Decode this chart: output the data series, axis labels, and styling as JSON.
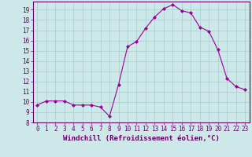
{
  "x": [
    0,
    1,
    2,
    3,
    4,
    5,
    6,
    7,
    8,
    9,
    10,
    11,
    12,
    13,
    14,
    15,
    16,
    17,
    18,
    19,
    20,
    21,
    22,
    23
  ],
  "y": [
    9.7,
    10.1,
    10.1,
    10.1,
    9.7,
    9.7,
    9.7,
    9.5,
    8.6,
    11.7,
    15.4,
    15.9,
    17.2,
    18.3,
    19.1,
    19.5,
    18.9,
    18.7,
    17.3,
    16.9,
    15.1,
    12.3,
    11.5,
    11.2
  ],
  "line_color": "#990099",
  "marker": "D",
  "marker_size": 2,
  "bg_color": "#cde8e8",
  "grid_color": "#aacccc",
  "xlabel": "Windchill (Refroidissement éolien,°C)",
  "ylim": [
    8,
    19.8
  ],
  "xlim": [
    -0.5,
    23.5
  ],
  "yticks": [
    8,
    9,
    10,
    11,
    12,
    13,
    14,
    15,
    16,
    17,
    18,
    19
  ],
  "xticks": [
    0,
    1,
    2,
    3,
    4,
    5,
    6,
    7,
    8,
    9,
    10,
    11,
    12,
    13,
    14,
    15,
    16,
    17,
    18,
    19,
    20,
    21,
    22,
    23
  ],
  "tick_label_fontsize": 5.5,
  "xlabel_fontsize": 6.5
}
